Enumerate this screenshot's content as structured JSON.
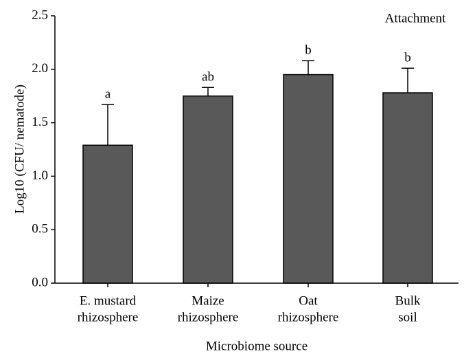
{
  "chart_data": {
    "type": "bar",
    "annotation": "Attachment",
    "xlabel": "Microbiome source",
    "ylabel": "Log10 (CFU/ nematode)",
    "categories": [
      [
        "E. mustard",
        "rhizosphere"
      ],
      [
        "Maize",
        "rhizosphere"
      ],
      [
        "Oat",
        "rhizosphere"
      ],
      [
        "Bulk",
        "soil"
      ]
    ],
    "values": [
      1.29,
      1.75,
      1.95,
      1.78
    ],
    "errors": [
      0.38,
      0.08,
      0.13,
      0.23
    ],
    "significance": [
      "a",
      "ab",
      "b",
      "b"
    ],
    "color": "#595959",
    "ylim": [
      0,
      2.5
    ],
    "yticks": [
      {
        "value": 0,
        "label": "0.0"
      },
      0.5,
      {
        "value": 1,
        "label": "1.0"
      },
      1.5,
      {
        "value": 2,
        "label": "2.0"
      },
      2.5
    ],
    "grid": false
  }
}
